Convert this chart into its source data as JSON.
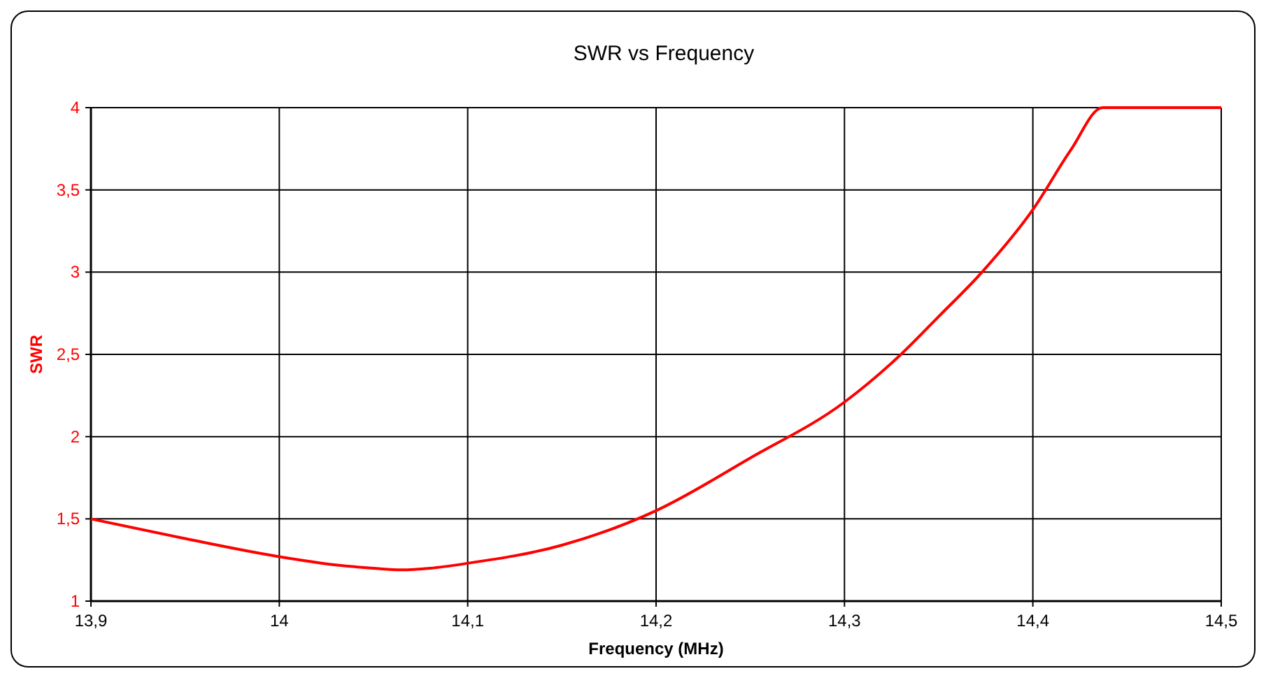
{
  "chart_data": {
    "type": "line",
    "title": "SWR vs Frequency",
    "xlabel": "Frequency (MHz)",
    "ylabel": "SWR",
    "x": [
      13.9,
      13.95,
      14.0,
      14.03,
      14.05,
      14.065,
      14.08,
      14.1,
      14.15,
      14.2,
      14.25,
      14.3,
      14.33,
      14.35,
      14.373,
      14.4,
      14.42,
      14.437,
      14.5
    ],
    "series": [
      {
        "color": "#ff0000",
        "values": [
          1.5,
          1.38,
          1.27,
          1.22,
          1.2,
          1.19,
          1.2,
          1.23,
          1.34,
          1.55,
          1.87,
          2.21,
          2.5,
          2.73,
          3.0,
          3.38,
          3.74,
          4.0,
          4.0
        ]
      }
    ],
    "xlim": [
      13.9,
      14.5
    ],
    "ylim": [
      1,
      4
    ],
    "xticks": [
      {
        "value": 13.9,
        "label": "13,9"
      },
      14,
      {
        "value": 14.1,
        "label": "14,1"
      },
      {
        "value": 14.2,
        "label": "14,2"
      },
      {
        "value": 14.3,
        "label": "14,3"
      },
      {
        "value": 14.4,
        "label": "14,4"
      },
      {
        "value": 14.5,
        "label": "14,5"
      }
    ],
    "yticks": [
      1,
      {
        "value": 1.5,
        "label": "1,5"
      },
      2,
      {
        "value": 2.5,
        "label": "2,5"
      },
      3,
      {
        "value": 3.5,
        "label": "3,5"
      },
      4
    ],
    "grid": true,
    "marker": "none",
    "line_style": "solid"
  }
}
